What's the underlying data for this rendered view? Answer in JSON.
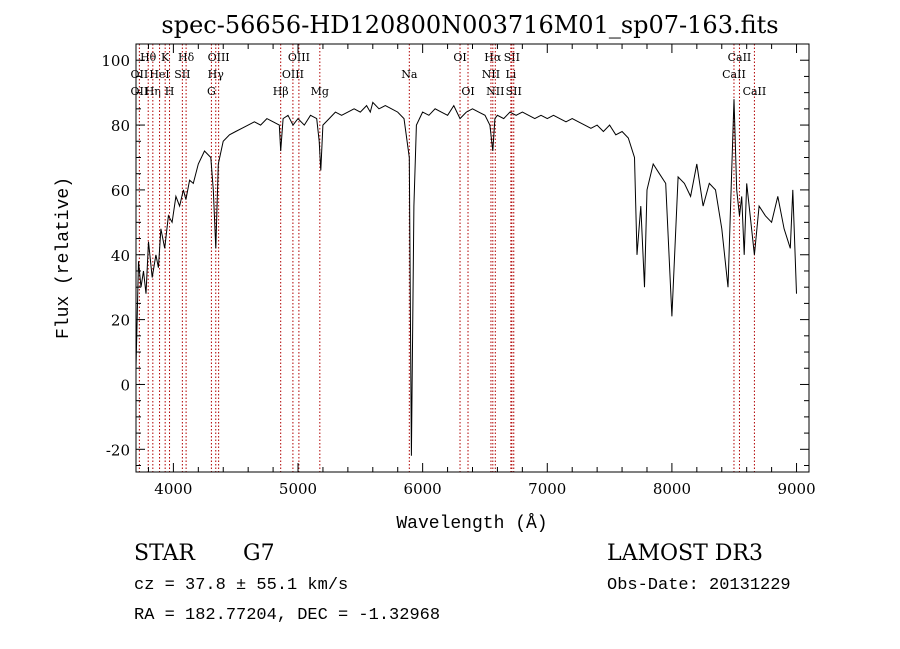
{
  "chart_data": {
    "type": "line",
    "title": "spec-56656-HD120800N003716M01_sp07-163.fits",
    "xlabel": "Wavelength (Å)",
    "ylabel": "Flux (relative)",
    "xlim": [
      3700,
      9100
    ],
    "ylim": [
      -27,
      105
    ],
    "x_ticks": [
      4000,
      5000,
      6000,
      7000,
      8000,
      9000
    ],
    "y_ticks": [
      -20,
      0,
      20,
      40,
      60,
      80,
      100
    ],
    "grid": false,
    "series": [
      {
        "x": [
          3700,
          3720,
          3740,
          3760,
          3780,
          3800,
          3830,
          3860,
          3880,
          3900,
          3930,
          3960,
          3990,
          4020,
          4050,
          4080,
          4100,
          4130,
          4160,
          4200,
          4250,
          4300,
          4320,
          4340,
          4360,
          4400,
          4450,
          4500,
          4550,
          4600,
          4650,
          4700,
          4750,
          4800,
          4850,
          4861,
          4880,
          4920,
          4960,
          5000,
          5050,
          5100,
          5150,
          5170,
          5183,
          5200,
          5250,
          5300,
          5350,
          5400,
          5450,
          5500,
          5550,
          5580,
          5600,
          5650,
          5700,
          5750,
          5800,
          5850,
          5893,
          5910,
          5930,
          5950,
          6000,
          6050,
          6100,
          6150,
          6200,
          6250,
          6300,
          6350,
          6400,
          6450,
          6500,
          6540,
          6563,
          6580,
          6600,
          6650,
          6700,
          6750,
          6800,
          6850,
          6900,
          6950,
          7000,
          7050,
          7100,
          7150,
          7200,
          7250,
          7300,
          7350,
          7400,
          7450,
          7500,
          7550,
          7600,
          7650,
          7700,
          7720,
          7750,
          7780,
          7800,
          7850,
          7900,
          7950,
          8000,
          8050,
          8100,
          8150,
          8200,
          8250,
          8300,
          8350,
          8400,
          8450,
          8498,
          8520,
          8542,
          8560,
          8580,
          8600,
          8662,
          8700,
          8750,
          8800,
          8850,
          8900,
          8950,
          8970,
          9000
        ],
        "y": [
          5,
          38,
          30,
          35,
          28,
          44,
          33,
          40,
          36,
          48,
          42,
          52,
          50,
          58,
          55,
          60,
          57,
          63,
          62,
          68,
          72,
          70,
          60,
          42,
          68,
          75,
          77,
          78,
          79,
          80,
          81,
          80,
          82,
          81,
          80,
          72,
          82,
          83,
          80,
          82,
          80,
          83,
          82,
          75,
          66,
          80,
          82,
          84,
          83,
          84,
          85,
          84,
          86,
          84,
          87,
          85,
          86,
          85,
          84,
          82,
          70,
          -22,
          55,
          80,
          84,
          83,
          85,
          84,
          83,
          86,
          82,
          84,
          85,
          84,
          83,
          80,
          72,
          82,
          83,
          82,
          84,
          83,
          84,
          83,
          82,
          83,
          82,
          83,
          82,
          81,
          82,
          81,
          80,
          79,
          80,
          78,
          80,
          77,
          78,
          76,
          70,
          40,
          55,
          30,
          60,
          68,
          65,
          62,
          21,
          64,
          62,
          58,
          68,
          55,
          62,
          60,
          48,
          30,
          88,
          60,
          52,
          58,
          40,
          62,
          40,
          55,
          52,
          50,
          58,
          48,
          42,
          60,
          28
        ]
      }
    ],
    "line_markers": [
      {
        "label": "Hθ",
        "x": 3798,
        "row": 1
      },
      {
        "label": "OII",
        "x": 3727,
        "row": 2
      },
      {
        "label": "OII",
        "x": 3727,
        "row": 3
      },
      {
        "label": "Hη",
        "x": 3835,
        "row": 3
      },
      {
        "label": "HeI",
        "x": 3889,
        "row": 2
      },
      {
        "label": "K",
        "x": 3934,
        "row": 1
      },
      {
        "label": "H",
        "x": 3969,
        "row": 3
      },
      {
        "label": "SII",
        "x": 4072,
        "row": 2
      },
      {
        "label": "Hδ",
        "x": 4102,
        "row": 1
      },
      {
        "label": "OIII",
        "x": 4363,
        "row": 1
      },
      {
        "label": "Hγ",
        "x": 4340,
        "row": 2
      },
      {
        "label": "G",
        "x": 4305,
        "row": 3
      },
      {
        "label": "Hβ",
        "x": 4861,
        "row": 3
      },
      {
        "label": "OIII",
        "x": 5007,
        "row": 1
      },
      {
        "label": "OIII",
        "x": 4959,
        "row": 2
      },
      {
        "label": "Mg",
        "x": 5175,
        "row": 3
      },
      {
        "label": "Na",
        "x": 5893,
        "row": 2
      },
      {
        "label": "OI",
        "x": 6300,
        "row": 1
      },
      {
        "label": "OI",
        "x": 6364,
        "row": 3
      },
      {
        "label": "Hα",
        "x": 6563,
        "row": 1
      },
      {
        "label": "NII",
        "x": 6548,
        "row": 2
      },
      {
        "label": "NII",
        "x": 6583,
        "row": 3
      },
      {
        "label": "SII",
        "x": 6716,
        "row": 1
      },
      {
        "label": "Li",
        "x": 6708,
        "row": 2
      },
      {
        "label": "SII",
        "x": 6731,
        "row": 3
      },
      {
        "label": "CaII",
        "x": 8542,
        "row": 1
      },
      {
        "label": "CaII",
        "x": 8498,
        "row": 2
      },
      {
        "label": "CaII",
        "x": 8662,
        "row": 3
      }
    ]
  },
  "info": {
    "object_class": "STAR",
    "subclass": "G7",
    "redshift": "cz = 37.8 ± 55.1 km/s",
    "coords": "RA = 182.77204, DEC =  -1.32968",
    "survey": "LAMOST DR3",
    "obs_date": "Obs-Date: 20131229"
  },
  "colors": {
    "line": "#000000",
    "marker_line": "#b00000",
    "axis": "#000000",
    "background": "#ffffff"
  }
}
